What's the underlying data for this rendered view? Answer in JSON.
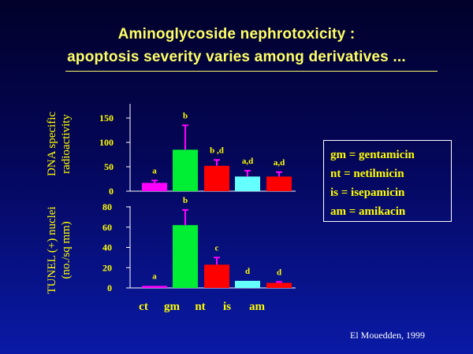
{
  "slide": {
    "title_line1": "Aminoglycoside nephrotoxicity :",
    "title_line2": "apoptosis severity varies among derivatives ...",
    "credit": "El Mouedden, 1999"
  },
  "legend": [
    "gm = gentamicin",
    "nt = netilmicin",
    "is = isepamicin",
    "am = amikacin"
  ],
  "colors": {
    "ct": "#ff00ff",
    "gm": "#00ee33",
    "nt": "#ff0000",
    "is": "#66ffff",
    "am": "#ff0000",
    "error_bar": "#ff00ff",
    "text": "#ffff00"
  },
  "chart_data": [
    {
      "type": "bar",
      "ylabel_line1": "DNA  specific",
      "ylabel_line2": "radioactivity",
      "categories": [
        "ct",
        "gm",
        "nt",
        "is",
        "am"
      ],
      "values": [
        17,
        85,
        52,
        30,
        30
      ],
      "errors": [
        5,
        50,
        12,
        12,
        9
      ],
      "labels": [
        "a",
        "b",
        "b ,d",
        "a,d",
        "a,d"
      ],
      "yticks": [
        0,
        50,
        100,
        150
      ],
      "ylim": [
        0,
        150
      ]
    },
    {
      "type": "bar",
      "ylabel_line1": "TUNEL (+) nuclei",
      "ylabel_line2": "(no./sq mm)",
      "categories": [
        "ct",
        "gm",
        "nt",
        "is",
        "am"
      ],
      "values": [
        2,
        62,
        23,
        7,
        5
      ],
      "errors": [
        0,
        15,
        7,
        0,
        1
      ],
      "labels": [
        "a",
        "b",
        "c",
        "d",
        "d"
      ],
      "yticks": [
        0,
        20,
        40,
        60,
        80
      ],
      "ylim": [
        0,
        80
      ],
      "xlabels": [
        "ct",
        "gm",
        "nt",
        "is",
        "am"
      ]
    }
  ]
}
